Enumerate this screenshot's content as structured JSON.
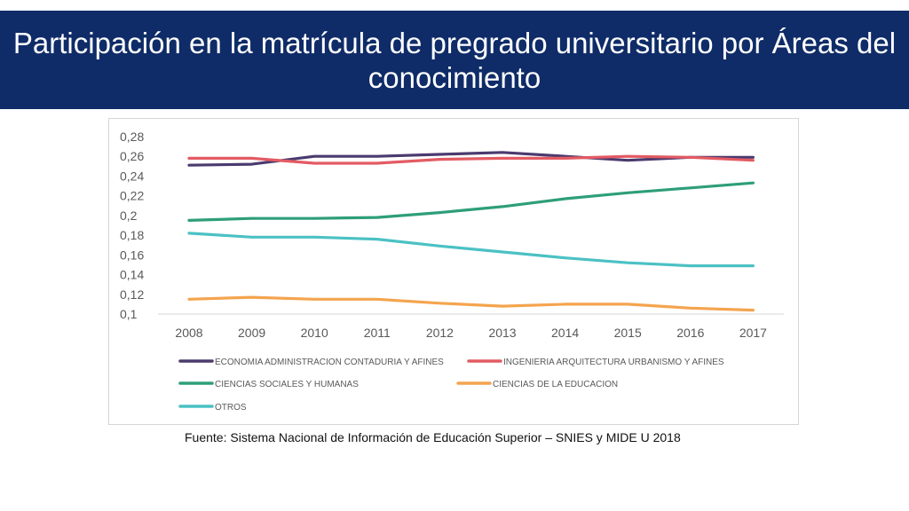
{
  "header": {
    "title": "Participación en la matrícula de pregrado universitario por Áreas del conocimiento"
  },
  "source": "Fuente: Sistema Nacional de Información de Educación Superior – SNIES  y MIDE U 2018",
  "chart_data": {
    "type": "line",
    "title": "",
    "xlabel": "",
    "ylabel": "",
    "ylim": [
      0.1,
      0.28
    ],
    "grid": false,
    "legend_position": "bottom",
    "x": [
      "2008",
      "2009",
      "2010",
      "2011",
      "2012",
      "2013",
      "2014",
      "2015",
      "2016",
      "2017"
    ],
    "y_ticks": [
      "0,1",
      "0,12",
      "0,14",
      "0,16",
      "0,18",
      "0,2",
      "0,22",
      "0,24",
      "0,26",
      "0,28"
    ],
    "y_tick_values": [
      0.1,
      0.12,
      0.14,
      0.16,
      0.18,
      0.2,
      0.22,
      0.24,
      0.26,
      0.28
    ],
    "series": [
      {
        "name": "ECONOMIA ADMINISTRACION CONTADURIA Y AFINES",
        "color": "#4b3a6e",
        "values": [
          0.251,
          0.252,
          0.26,
          0.26,
          0.262,
          0.264,
          0.26,
          0.256,
          0.259,
          0.259
        ]
      },
      {
        "name": "INGENIERIA ARQUITECTURA URBANISMO Y AFINES",
        "color": "#e35b63",
        "values": [
          0.258,
          0.258,
          0.253,
          0.253,
          0.257,
          0.258,
          0.258,
          0.26,
          0.259,
          0.256
        ]
      },
      {
        "name": "CIENCIAS SOCIALES Y HUMANAS",
        "color": "#2e9e7a",
        "values": [
          0.195,
          0.197,
          0.197,
          0.198,
          0.203,
          0.209,
          0.217,
          0.223,
          0.228,
          0.233
        ]
      },
      {
        "name": "CIENCIAS DE LA EDUCACION",
        "color": "#f4a44e",
        "values": [
          0.115,
          0.117,
          0.115,
          0.115,
          0.111,
          0.108,
          0.11,
          0.11,
          0.106,
          0.104
        ]
      },
      {
        "name": "OTROS",
        "color": "#4bc1c4",
        "values": [
          0.182,
          0.178,
          0.178,
          0.176,
          0.169,
          0.163,
          0.157,
          0.152,
          0.149,
          0.149
        ]
      }
    ]
  }
}
